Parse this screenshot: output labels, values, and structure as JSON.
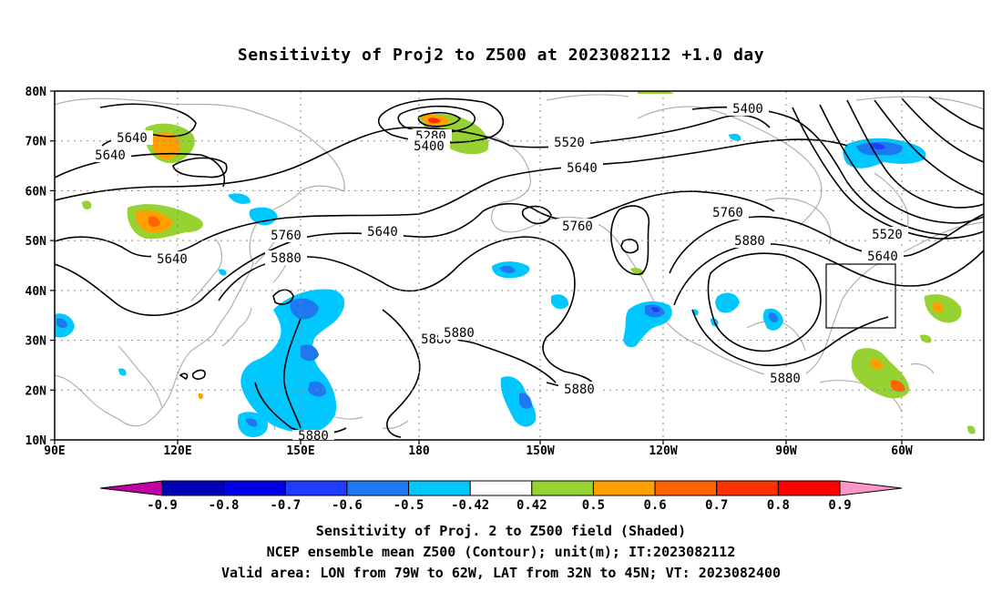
{
  "title": "Sensitivity of Proj2 to Z500 at 2023082112 +1.0 day",
  "lat_labels": [
    "80N",
    "70N",
    "60N",
    "50N",
    "40N",
    "30N",
    "20N",
    "10N"
  ],
  "lon_labels": [
    "90E",
    "120E",
    "150E",
    "180",
    "150W",
    "120W",
    "90W",
    "60W"
  ],
  "contour_labels": [
    "5640",
    "5640",
    "5280",
    "5400",
    "5520",
    "5400",
    "5640",
    "5640",
    "5760",
    "5880",
    "5760",
    "5640",
    "5760",
    "5880",
    "5520",
    "5640",
    "5880",
    "5880",
    "5880",
    "5880",
    "5880"
  ],
  "colorbar": {
    "labels": [
      "-0.9",
      "-0.8",
      "-0.7",
      "-0.6",
      "-0.5",
      "-0.42",
      "0.42",
      "0.5",
      "0.6",
      "0.7",
      "0.8",
      "0.9"
    ],
    "colors": [
      "#c000a0",
      "#0000b4",
      "#0000e6",
      "#1e3cff",
      "#1e78f0",
      "#00c8ff",
      "#ffffff",
      "#96d232",
      "#ffa000",
      "#ff6400",
      "#ff3200",
      "#ff0000",
      "#ff96c8"
    ]
  },
  "footer": {
    "line1": "Sensitivity of Proj. 2 to Z500 field (Shaded)",
    "line2": "NCEP ensemble mean Z500 (Contour); unit(m); IT:2023082112",
    "line3": "Valid area: LON from 79W to 62W, LAT from 32N to 45N; VT: 2023082400"
  }
}
